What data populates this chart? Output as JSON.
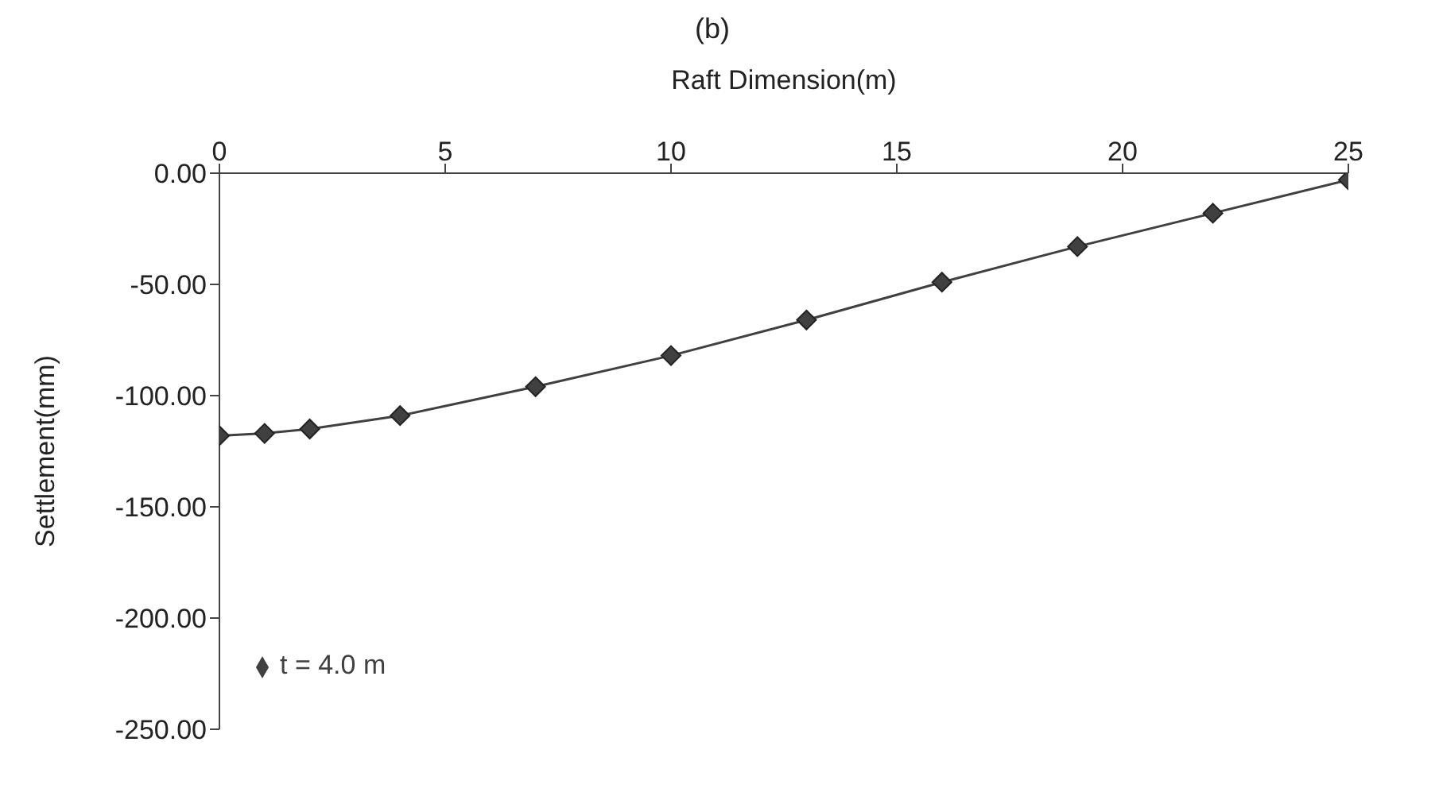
{
  "chart_data": {
    "type": "line",
    "title": "(b)",
    "xlabel": "Raft Dimension(m)",
    "ylabel": "Settlement(mm)",
    "x": [
      0,
      1,
      2,
      4,
      7,
      10,
      13,
      16,
      19,
      22,
      25
    ],
    "series": [
      {
        "name": "t = 4.0 m",
        "color": "#404040",
        "values": [
          -118,
          -117,
          -115,
          -109,
          -96,
          -82,
          -66,
          -49,
          -33,
          -18,
          -3
        ]
      }
    ],
    "xlim": [
      0,
      25
    ],
    "xticks": [
      0,
      5,
      10,
      15,
      20,
      25
    ],
    "ylim": [
      -250,
      0
    ],
    "yticks": [
      {
        "value": 0,
        "label": "0.00"
      },
      {
        "value": -50,
        "label": "-50.00"
      },
      {
        "value": -100,
        "label": "-100.00"
      },
      {
        "value": -150,
        "label": "-150.00"
      },
      {
        "value": -200,
        "label": "-200.00"
      },
      {
        "value": -250,
        "label": "-250.00"
      }
    ],
    "marker": "diamond",
    "legend": "bottom left",
    "grid": false
  }
}
